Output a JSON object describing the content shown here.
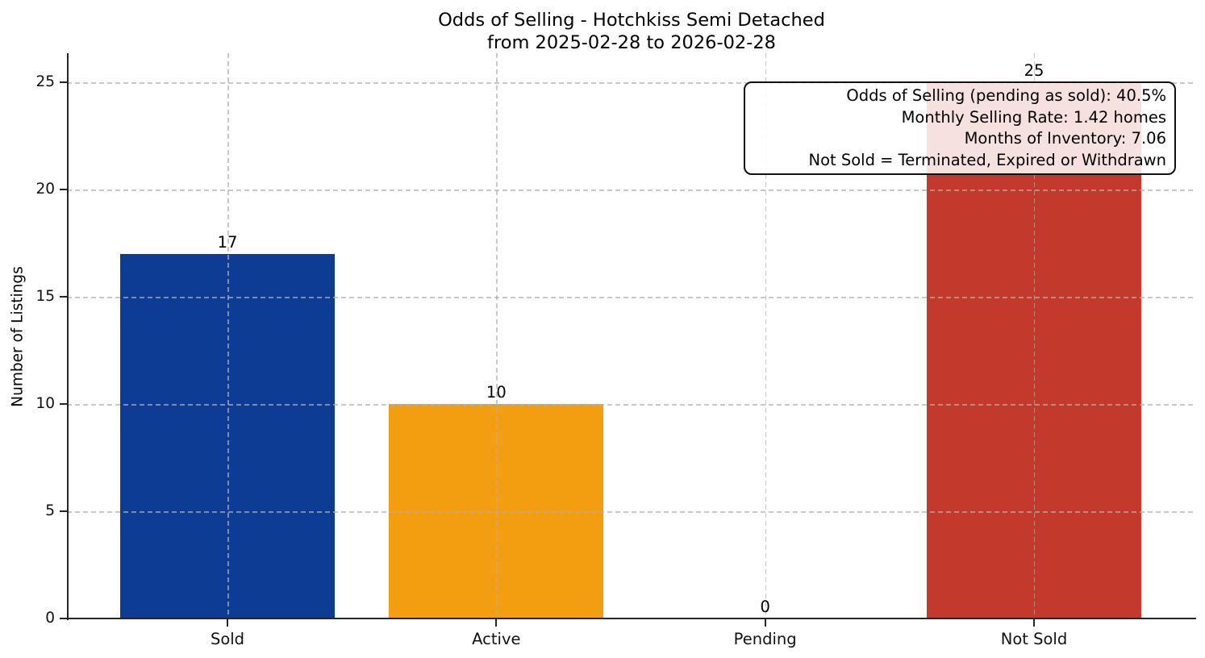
{
  "chart_data": {
    "type": "bar",
    "title": "Odds of Selling - Hotchkiss Semi Detached",
    "subtitle": "from 2025-02-28 to 2026-02-28",
    "ylabel": "Number of Listings",
    "xlabel": "",
    "categories": [
      "Sold",
      "Active",
      "Pending",
      "Not Sold"
    ],
    "values": [
      17,
      10,
      0,
      25
    ],
    "bar_colors": [
      "#0d3c94",
      "#f39e11",
      null,
      "#c33a2c"
    ],
    "yticks": [
      0,
      5,
      10,
      15,
      20,
      25
    ],
    "ylim": [
      0,
      26.4
    ],
    "grid": "dashed-both-axes",
    "legend": "none",
    "annotation": {
      "position": "top-right",
      "text_align": "right",
      "lines": [
        "Odds of Selling (pending as sold): 40.5%",
        "Monthly Selling Rate: 1.42 homes",
        "Months of Inventory: 7.06",
        "Not Sold = Terminated, Expired or Withdrawn"
      ]
    }
  },
  "colors": {
    "axis": "#262626",
    "gridline": "#c9c9c9",
    "annotation_border": "#111111",
    "annotation_background": "rgba(255,255,255,0.85)"
  }
}
